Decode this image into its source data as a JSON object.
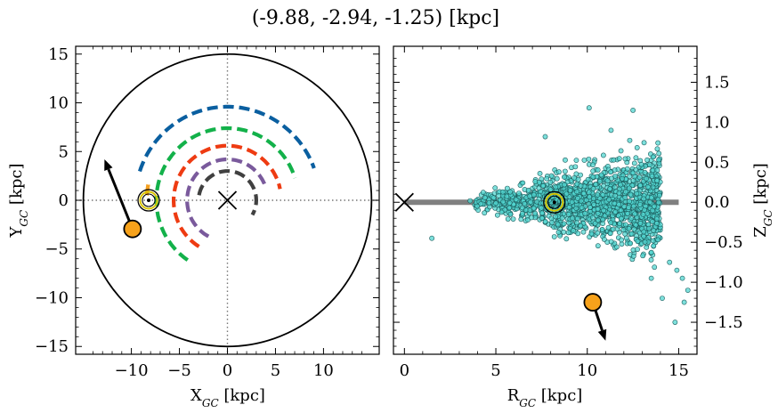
{
  "title": "(-9.88, -2.94, -1.25) [kpc]",
  "chart_data": [
    {
      "type": "scatter",
      "panel": "left",
      "xlabel": "X_GC [kpc]",
      "ylabel": "Y_GC [kpc]",
      "xlim": [
        -15.8,
        15.8
      ],
      "ylim": [
        -15.8,
        15.8
      ],
      "xticks": [
        -10,
        -5,
        0,
        5,
        10
      ],
      "xtick_labels": [
        "−10",
        "−5",
        "0",
        "5",
        "10"
      ],
      "yticks": [
        -15,
        -10,
        -5,
        0,
        5,
        10,
        15
      ],
      "ytick_labels": [
        "−15",
        "−10",
        "−5",
        "0",
        "5",
        "10",
        "15"
      ],
      "boundary_circle_radius": 15,
      "gridlines": {
        "x": 0,
        "y": 0,
        "style": "dotted"
      },
      "galactic_center": {
        "x": 0,
        "y": 0
      },
      "sun": {
        "x": -8.2,
        "y": 0
      },
      "source": {
        "x": -9.88,
        "y": -2.94
      },
      "velocity_arrow": {
        "from": [
          -9.88,
          -2.94
        ],
        "to": [
          -12.8,
          4.2
        ]
      },
      "arms": [
        {
          "color": "#0a5fa0",
          "radius": 9.6,
          "start_deg": 162,
          "end_deg": 20
        },
        {
          "color": "#13b14a",
          "radius": 7.4,
          "start_deg": 236,
          "end_deg": 18
        },
        {
          "color": "#ee3b12",
          "radius": 5.6,
          "start_deg": 238,
          "end_deg": 12
        },
        {
          "color": "#7a5a9c",
          "radius": 4.2,
          "start_deg": 242,
          "end_deg": 20
        },
        {
          "color": "#404040",
          "radius": 3.0,
          "start_deg": 170,
          "end_deg": -30
        },
        {
          "color": "#f5a020",
          "radius": 8.4,
          "start_deg": 169,
          "end_deg": 177
        }
      ]
    },
    {
      "type": "scatter",
      "panel": "right",
      "xlabel": "R_GC [kpc]",
      "ylabel": "Z_GC [kpc]",
      "xlim": [
        -0.6,
        16
      ],
      "ylim": [
        -1.9,
        1.95
      ],
      "xticks": [
        0,
        5,
        10,
        15
      ],
      "xtick_labels": [
        "0",
        "5",
        "10",
        "15"
      ],
      "yticks": [
        -1.5,
        -1.0,
        -0.5,
        0.0,
        0.5,
        1.0,
        1.5
      ],
      "ytick_labels": [
        "−1.5",
        "−1.0",
        "−0.5",
        "0.0",
        "0.5",
        "1.0",
        "1.5"
      ],
      "disk_band": {
        "x_from": 0,
        "x_to": 15,
        "z": 0
      },
      "galactic_center": {
        "x": 0,
        "z": 0
      },
      "sun": {
        "x": 8.2,
        "z": 0.0
      },
      "source": {
        "x": 10.3,
        "z": -1.25
      },
      "velocity_arrow": {
        "from": [
          10.3,
          -1.25
        ],
        "to": [
          11.0,
          -1.73
        ]
      },
      "outlier_points": [
        [
          1.5,
          -0.45
        ],
        [
          14.5,
          -0.75
        ],
        [
          14.9,
          -0.85
        ],
        [
          15.2,
          -0.95
        ],
        [
          15.5,
          -1.1
        ],
        [
          14.8,
          -1.5
        ],
        [
          15.3,
          -1.25
        ],
        [
          12.5,
          1.15
        ],
        [
          10.1,
          1.18
        ],
        [
          7.7,
          0.82
        ],
        [
          11.3,
          0.9
        ],
        [
          13.5,
          -0.95
        ],
        [
          14.1,
          -1.2
        ]
      ]
    }
  ]
}
